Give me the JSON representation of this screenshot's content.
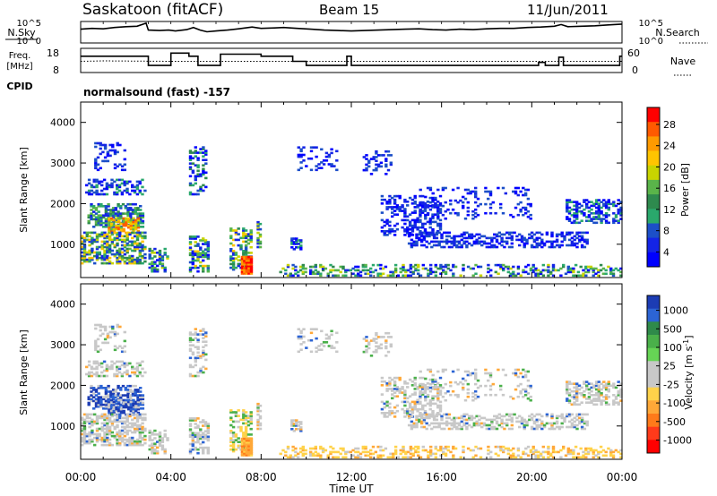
{
  "header": {
    "station": "Saskatoon (fitACF)",
    "beam": "Beam 15",
    "date": "11/Jun/2011"
  },
  "left_labels": {
    "nsky": "N.Sky",
    "freq": "Freq.",
    "freq_unit": "[MHz]",
    "cpid": "CPID"
  },
  "right_labels": {
    "nsearch": "N.Search",
    "nave": "Nave"
  },
  "cpid_text": "normalsound (fast) -157",
  "chart_data": [
    {
      "type": "line",
      "name": "noise-panel",
      "y_left_ticks": [
        "10^5",
        "10^0"
      ],
      "y_right_ticks": [
        "10^5",
        "10^0"
      ],
      "series": [
        {
          "id": "nsky",
          "style": "solid",
          "x": [
            0,
            0.5,
            1,
            1.5,
            2,
            2.5,
            2.9,
            3.0,
            3.5,
            3.9,
            4.2,
            4.7,
            5.0,
            5.3,
            5.6,
            6.0,
            6.5,
            7.0,
            7.6,
            8.0,
            8.6,
            9.0,
            9.6,
            10.2,
            10.8,
            11.4,
            12.0,
            12.6,
            13.2,
            13.8,
            14.4,
            15.0,
            15.6,
            16.2,
            16.8,
            17.4,
            18.0,
            18.6,
            19.2,
            19.8,
            20.4,
            21.0,
            21.3,
            21.6,
            22.2,
            22.8,
            23.4,
            24
          ],
          "y": [
            3.2,
            3.4,
            3.3,
            3.6,
            3.8,
            3.9,
            4.6,
            3.0,
            2.9,
            3.0,
            2.8,
            3.1,
            3.6,
            3.0,
            2.6,
            2.8,
            3.0,
            3.3,
            3.7,
            3.4,
            3.5,
            3.6,
            3.4,
            3.2,
            3.0,
            2.9,
            2.8,
            2.9,
            3.0,
            3.1,
            3.2,
            3.3,
            3.1,
            3.0,
            3.2,
            3.1,
            3.3,
            3.4,
            3.4,
            3.6,
            3.7,
            3.9,
            4.3,
            3.8,
            3.9,
            4.0,
            4.2,
            4.4
          ]
        }
      ]
    },
    {
      "type": "line",
      "name": "frequency-panel",
      "y_left_ticks": [
        "18",
        "8"
      ],
      "y_right_ticks": [
        "60",
        "0"
      ],
      "series": [
        {
          "id": "freq",
          "style": "solid",
          "x": [
            0,
            3.0,
            3.0,
            4.0,
            4.0,
            4.8,
            4.8,
            5.2,
            5.2,
            6.2,
            6.2,
            7.6,
            7.6,
            8.0,
            8.0,
            9.4,
            9.4,
            10.0,
            10.0,
            11.8,
            11.8,
            12.0,
            12.0,
            12.3,
            12.3,
            20.3,
            20.3,
            20.6,
            20.6,
            21.2,
            21.2,
            21.4,
            21.4,
            23.9,
            23.9,
            24
          ],
          "y": [
            15.5,
            15.5,
            11,
            11,
            17,
            17,
            15.5,
            15.5,
            11,
            11,
            16.5,
            16.5,
            16.5,
            16.5,
            15.5,
            15.5,
            13,
            13,
            11,
            11,
            15.5,
            15.5,
            11,
            11,
            11,
            11,
            12.5,
            12.5,
            11,
            11,
            15,
            15,
            11,
            11,
            15.5,
            15.5
          ]
        },
        {
          "id": "nave",
          "style": "dotted",
          "x": [
            0,
            1,
            4,
            6,
            9,
            12,
            16,
            20,
            24
          ],
          "y": [
            13,
            13.2,
            13,
            13,
            13,
            13,
            13,
            13,
            13
          ]
        }
      ]
    },
    {
      "type": "heatmap",
      "name": "power",
      "ylabel": "Slant Range [km]",
      "y_ticks": [
        1000,
        2000,
        3000,
        4000
      ],
      "colorbar_label": "Power [dB]",
      "colorbar_ticks": [
        "28",
        "24",
        "20",
        "16",
        "12",
        "8",
        "4"
      ],
      "colorbar_colors": [
        "#ff0000",
        "#ff5a00",
        "#ff9a00",
        "#ffc400",
        "#c8d400",
        "#5ab44a",
        "#2e8a4e",
        "#2aa86c",
        "#1c4fc8",
        "#1424e6",
        "#0000ff"
      ],
      "ylim": [
        180,
        4500
      ],
      "xlim": [
        0,
        24
      ]
    },
    {
      "type": "heatmap",
      "name": "velocity",
      "ylabel": "Slant Range [km]",
      "y_ticks": [
        1000,
        2000,
        3000,
        4000
      ],
      "colorbar_label": "Velocity [m s^-1]",
      "colorbar_ticks": [
        "1000",
        "500",
        "100",
        "25",
        "-25",
        "-100",
        "-500",
        "-1000"
      ],
      "colorbar_colors": [
        "#1c3cb4",
        "#2c64d4",
        "#2f8a4a",
        "#4ab04a",
        "#66d455",
        "#c8c8c8",
        "#c8c8c8",
        "#ffd24a",
        "#ffa838",
        "#ff7a1a",
        "#ff3a1a",
        "#ff0000"
      ],
      "ylim": [
        180,
        4500
      ],
      "xlim": [
        0,
        24
      ]
    }
  ],
  "x_axis": {
    "ticks": [
      "00:00",
      "04:00",
      "08:00",
      "12:00",
      "16:00",
      "20:00",
      "00:00"
    ],
    "label": "Time UT"
  }
}
